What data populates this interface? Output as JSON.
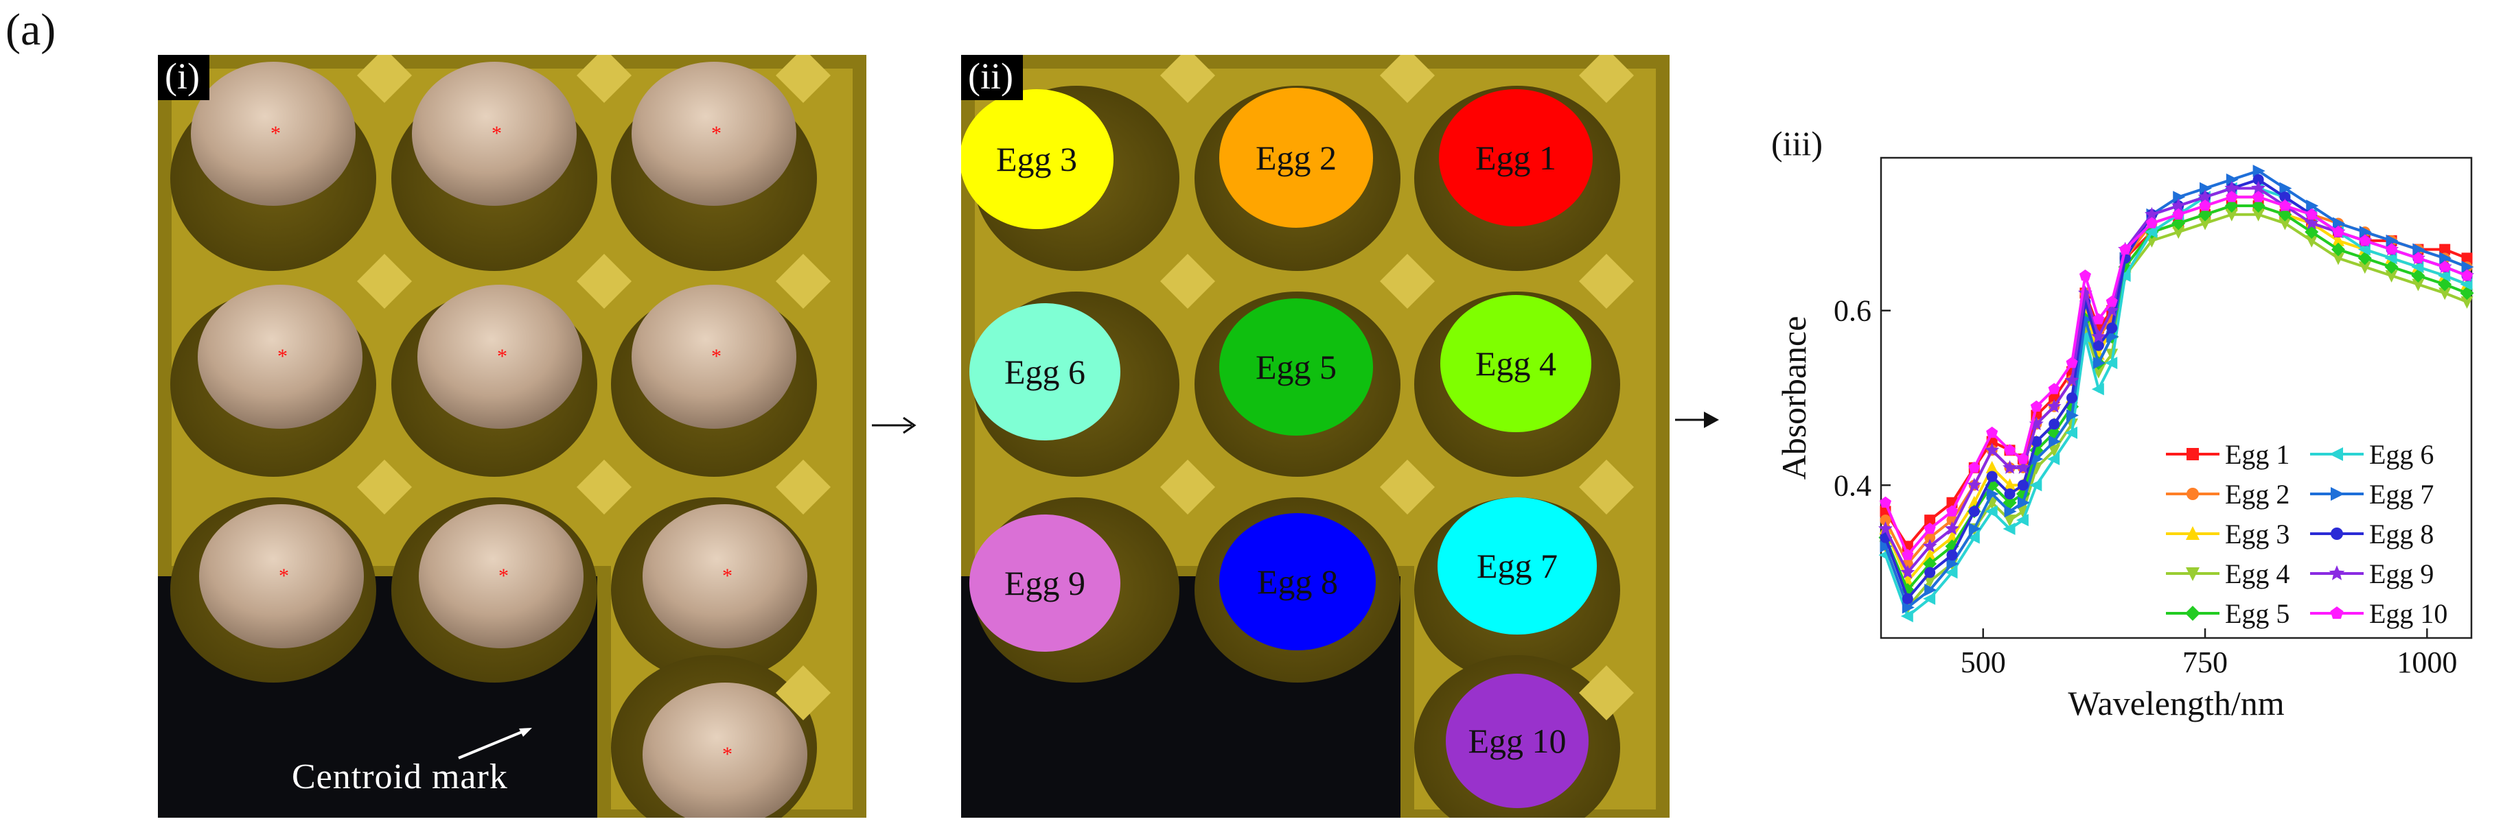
{
  "figure_label": "(a)",
  "panel_i": {
    "tag": "(i)",
    "centroid_label": "Centroid mark"
  },
  "panel_ii": {
    "tag": "(ii)",
    "eggs": [
      {
        "label": "Egg 3",
        "color": "#ffff00"
      },
      {
        "label": "Egg 2",
        "color": "#ffa500"
      },
      {
        "label": "Egg 1",
        "color": "#ff0000"
      },
      {
        "label": "Egg 6",
        "color": "#7fffd4"
      },
      {
        "label": "Egg 5",
        "color": "#0fbf0f"
      },
      {
        "label": "Egg 4",
        "color": "#7fff00"
      },
      {
        "label": "Egg 9",
        "color": "#da70d6"
      },
      {
        "label": "Egg 8",
        "color": "#0000ff"
      },
      {
        "label": "Egg 7",
        "color": "#00ffff"
      },
      {
        "label": "Egg 10",
        "color": "#9932cc"
      }
    ]
  },
  "chart_data": {
    "type": "line",
    "panel_tag": "(iii)",
    "xlabel": "Wavelength/nm",
    "ylabel": "Absorbance",
    "xlim": [
      385,
      1050
    ],
    "ylim": [
      0.225,
      0.775
    ],
    "xticks": [
      500,
      750,
      1000
    ],
    "yticks": [
      0.4,
      0.6
    ],
    "legend_position": "bottom-right",
    "x": [
      390,
      415,
      440,
      465,
      490,
      510,
      530,
      545,
      560,
      580,
      600,
      615,
      630,
      645,
      660,
      690,
      720,
      750,
      780,
      810,
      840,
      870,
      900,
      930,
      960,
      990,
      1020,
      1045
    ],
    "series": [
      {
        "name": "Egg 1",
        "color": "#ff1a1a",
        "marker": "square",
        "values": [
          0.37,
          0.33,
          0.36,
          0.38,
          0.42,
          0.45,
          0.44,
          0.43,
          0.48,
          0.5,
          0.53,
          0.62,
          0.58,
          0.6,
          0.66,
          0.69,
          0.7,
          0.71,
          0.72,
          0.72,
          0.71,
          0.7,
          0.69,
          0.68,
          0.68,
          0.67,
          0.67,
          0.66
        ]
      },
      {
        "name": "Egg 2",
        "color": "#ff7f27",
        "marker": "circle",
        "values": [
          0.36,
          0.31,
          0.34,
          0.36,
          0.4,
          0.44,
          0.42,
          0.42,
          0.47,
          0.49,
          0.52,
          0.62,
          0.57,
          0.59,
          0.66,
          0.7,
          0.71,
          0.72,
          0.73,
          0.73,
          0.72,
          0.71,
          0.7,
          0.69,
          0.68,
          0.67,
          0.66,
          0.65
        ]
      },
      {
        "name": "Egg 3",
        "color": "#ffd700",
        "marker": "triangle-up",
        "values": [
          0.35,
          0.29,
          0.32,
          0.34,
          0.38,
          0.42,
          0.4,
          0.4,
          0.45,
          0.47,
          0.5,
          0.6,
          0.55,
          0.58,
          0.65,
          0.69,
          0.7,
          0.71,
          0.72,
          0.72,
          0.71,
          0.7,
          0.68,
          0.67,
          0.66,
          0.65,
          0.64,
          0.63
        ]
      },
      {
        "name": "Egg 4",
        "color": "#9acd32",
        "marker": "triangle-down",
        "values": [
          0.33,
          0.26,
          0.29,
          0.31,
          0.35,
          0.38,
          0.36,
          0.37,
          0.42,
          0.44,
          0.47,
          0.58,
          0.53,
          0.55,
          0.64,
          0.68,
          0.69,
          0.7,
          0.71,
          0.71,
          0.7,
          0.68,
          0.66,
          0.65,
          0.64,
          0.63,
          0.62,
          0.61
        ]
      },
      {
        "name": "Egg 5",
        "color": "#22cc22",
        "marker": "diamond",
        "values": [
          0.34,
          0.28,
          0.31,
          0.33,
          0.37,
          0.4,
          0.38,
          0.39,
          0.44,
          0.46,
          0.49,
          0.59,
          0.54,
          0.57,
          0.65,
          0.69,
          0.7,
          0.71,
          0.72,
          0.72,
          0.71,
          0.69,
          0.67,
          0.66,
          0.65,
          0.64,
          0.63,
          0.62
        ]
      },
      {
        "name": "Egg 6",
        "color": "#2ad4d4",
        "marker": "triangle-left",
        "values": [
          0.32,
          0.25,
          0.27,
          0.3,
          0.34,
          0.37,
          0.35,
          0.36,
          0.4,
          0.43,
          0.46,
          0.57,
          0.51,
          0.54,
          0.64,
          0.69,
          0.71,
          0.73,
          0.74,
          0.74,
          0.73,
          0.71,
          0.69,
          0.67,
          0.66,
          0.65,
          0.64,
          0.63
        ]
      },
      {
        "name": "Egg 7",
        "color": "#1e6fd9",
        "marker": "triangle-right",
        "values": [
          0.33,
          0.26,
          0.28,
          0.31,
          0.35,
          0.39,
          0.37,
          0.38,
          0.43,
          0.45,
          0.48,
          0.59,
          0.54,
          0.57,
          0.66,
          0.71,
          0.73,
          0.74,
          0.75,
          0.76,
          0.74,
          0.72,
          0.7,
          0.69,
          0.68,
          0.67,
          0.66,
          0.65
        ]
      },
      {
        "name": "Egg 8",
        "color": "#2b2bd6",
        "marker": "circle",
        "values": [
          0.34,
          0.27,
          0.3,
          0.32,
          0.37,
          0.41,
          0.39,
          0.4,
          0.45,
          0.47,
          0.5,
          0.61,
          0.56,
          0.58,
          0.66,
          0.71,
          0.72,
          0.73,
          0.74,
          0.75,
          0.73,
          0.71,
          0.69,
          0.68,
          0.67,
          0.66,
          0.65,
          0.64
        ]
      },
      {
        "name": "Egg 9",
        "color": "#8a2be2",
        "marker": "star",
        "values": [
          0.35,
          0.3,
          0.33,
          0.35,
          0.4,
          0.44,
          0.42,
          0.42,
          0.47,
          0.49,
          0.52,
          0.62,
          0.57,
          0.6,
          0.67,
          0.71,
          0.72,
          0.73,
          0.74,
          0.74,
          0.72,
          0.7,
          0.69,
          0.68,
          0.67,
          0.66,
          0.65,
          0.64
        ]
      },
      {
        "name": "Egg 10",
        "color": "#ff1aff",
        "marker": "pentagon",
        "values": [
          0.38,
          0.32,
          0.35,
          0.37,
          0.42,
          0.46,
          0.44,
          0.43,
          0.49,
          0.51,
          0.54,
          0.64,
          0.59,
          0.61,
          0.67,
          0.7,
          0.71,
          0.72,
          0.73,
          0.73,
          0.72,
          0.71,
          0.69,
          0.68,
          0.67,
          0.66,
          0.65,
          0.64
        ]
      }
    ]
  }
}
